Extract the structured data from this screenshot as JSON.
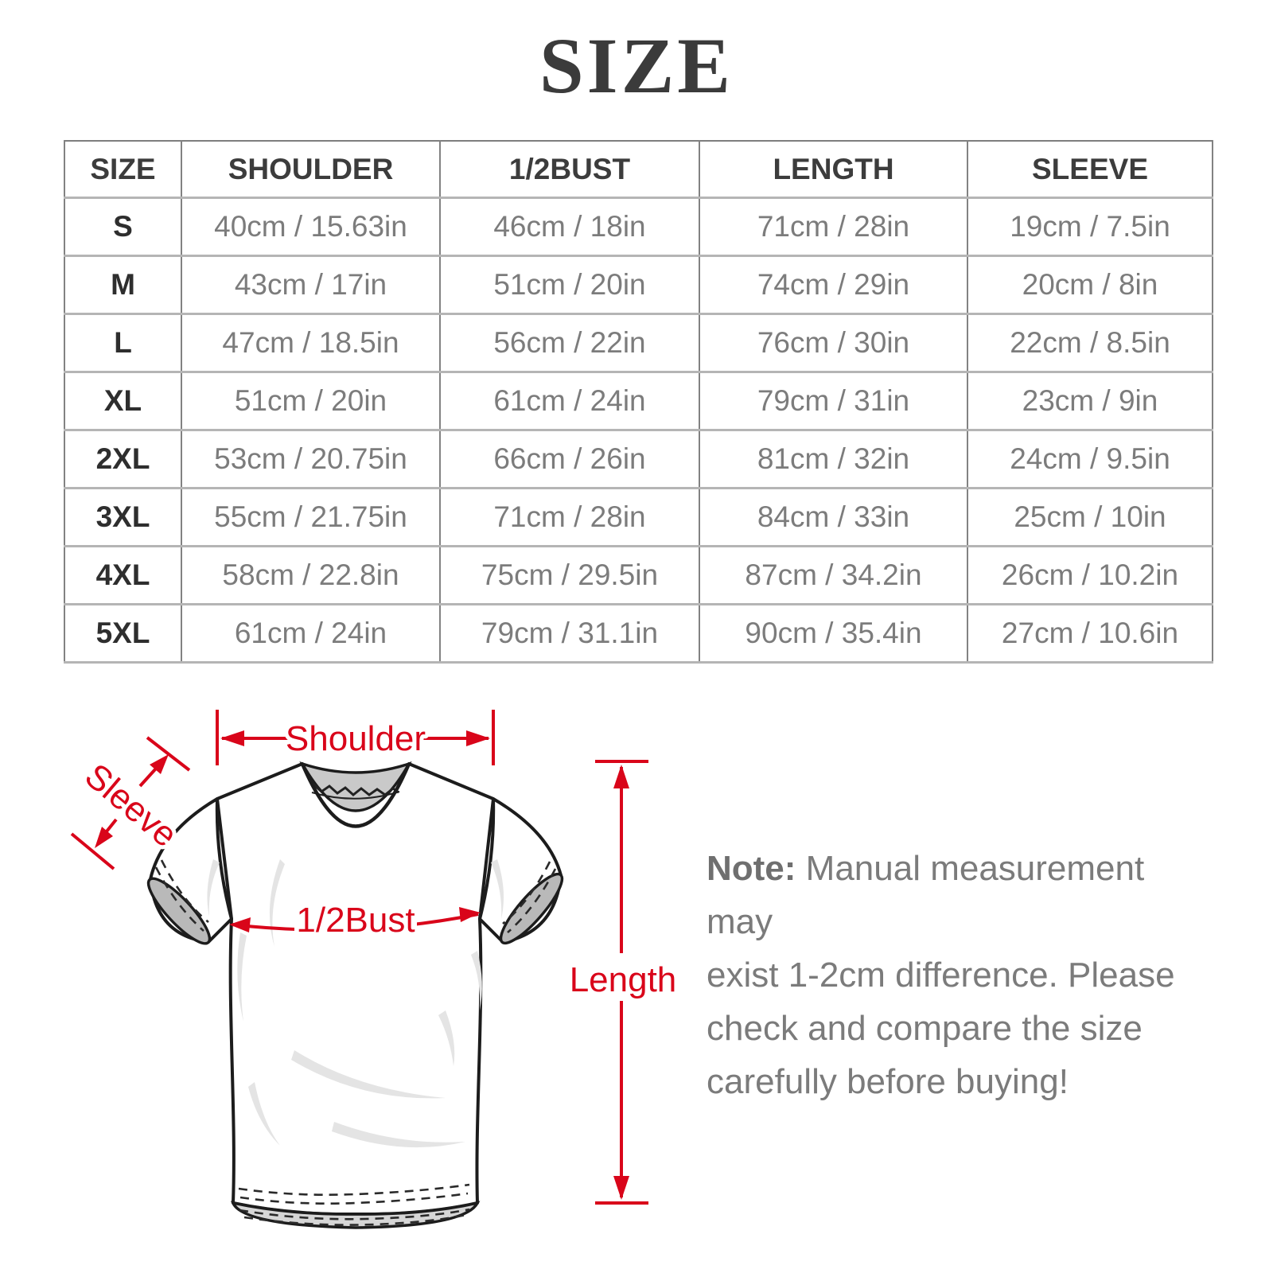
{
  "title": "SIZE",
  "table": {
    "headers": [
      "SIZE",
      "SHOULDER",
      "1/2BUST",
      "LENGTH",
      "SLEEVE"
    ],
    "rows": [
      {
        "size": "S",
        "shoulder": "40cm / 15.63in",
        "bust": "46cm / 18in",
        "length": "71cm / 28in",
        "sleeve": "19cm / 7.5in"
      },
      {
        "size": "M",
        "shoulder": "43cm / 17in",
        "bust": "51cm / 20in",
        "length": "74cm / 29in",
        "sleeve": "20cm / 8in"
      },
      {
        "size": "L",
        "shoulder": "47cm / 18.5in",
        "bust": "56cm / 22in",
        "length": "76cm / 30in",
        "sleeve": "22cm / 8.5in"
      },
      {
        "size": "XL",
        "shoulder": "51cm / 20in",
        "bust": "61cm / 24in",
        "length": "79cm / 31in",
        "sleeve": "23cm / 9in"
      },
      {
        "size": "2XL",
        "shoulder": "53cm / 20.75in",
        "bust": "66cm / 26in",
        "length": "81cm / 32in",
        "sleeve": "24cm / 9.5in"
      },
      {
        "size": "3XL",
        "shoulder": "55cm / 21.75in",
        "bust": "71cm / 28in",
        "length": "84cm / 33in",
        "sleeve": "25cm / 10in"
      },
      {
        "size": "4XL",
        "shoulder": "58cm / 22.8in",
        "bust": "75cm / 29.5in",
        "length": "87cm / 34.2in",
        "sleeve": "26cm / 10.2in"
      },
      {
        "size": "5XL",
        "shoulder": "61cm / 24in",
        "bust": "79cm / 31.1in",
        "length": "90cm / 35.4in",
        "sleeve": "27cm / 10.6in"
      }
    ]
  },
  "diagram": {
    "labels": {
      "shoulder": "Shoulder",
      "sleeve": "Sleeve",
      "bust": "1/2Bust",
      "length": "Length"
    },
    "accent_color": "#d9051a"
  },
  "note": {
    "label": "Note:",
    "lines": [
      "Manual measurement may",
      "exist 1-2cm difference. Please",
      "check and compare the size",
      "carefully before buying!"
    ]
  }
}
